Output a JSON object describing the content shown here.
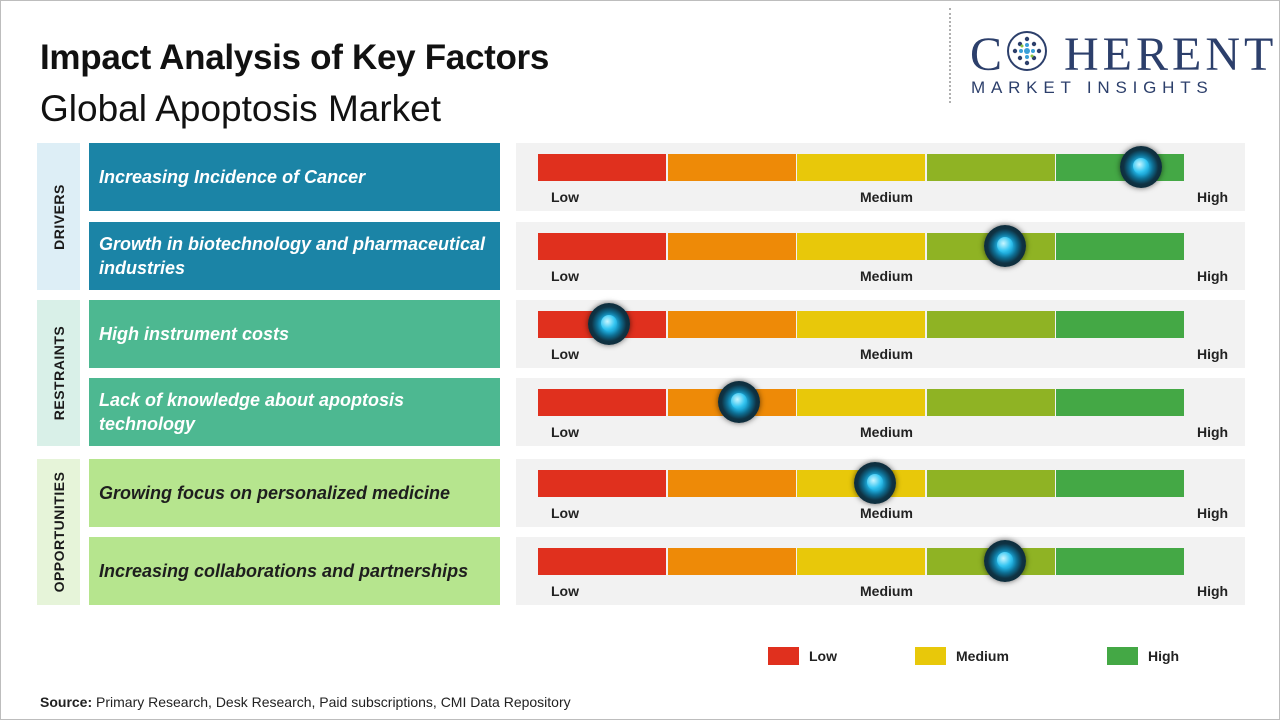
{
  "title": "Impact Analysis of Key Factors",
  "subtitle": "Global Apoptosis Market",
  "logo": {
    "main": "COHERENT",
    "sub": "MARKET INSIGHTS"
  },
  "scale_labels": {
    "low": "Low",
    "medium": "Medium",
    "high": "High"
  },
  "scale_colors": [
    "#e0301e",
    "#ee8a07",
    "#e8c80a",
    "#8fb324",
    "#44a845"
  ],
  "groups": [
    {
      "label": "DRIVERS",
      "bg": "#ddeef6",
      "factor_bg": "#1b84a6",
      "factor_color": "#ffffff"
    },
    {
      "label": "RESTRAINTS",
      "bg": "#d9f0e8",
      "factor_bg": "#4db891",
      "factor_color": "#ffffff"
    },
    {
      "label": "OPPORTUNITIES",
      "bg": "#e6f4d9",
      "factor_bg": "#b6e58e",
      "factor_color": "#1e1e1e"
    }
  ],
  "legend": [
    {
      "label": "Low",
      "color": "#e0301e"
    },
    {
      "label": "Medium",
      "color": "#e8c80a"
    },
    {
      "label": "High",
      "color": "#44a845"
    }
  ],
  "source": {
    "prefix": "Source:",
    "text": " Primary Research, Desk Research, Paid subscriptions, CMI Data Repository"
  },
  "chart_data": {
    "type": "table",
    "scale": [
      "Low",
      "Medium",
      "High"
    ],
    "factors": [
      {
        "group": "DRIVERS",
        "label": "Increasing Incidence of Cancer",
        "impact": 0.93
      },
      {
        "group": "DRIVERS",
        "label": "Growth in biotechnology and pharmaceutical industries",
        "impact": 0.72
      },
      {
        "group": "RESTRAINTS",
        "label": "High instrument costs",
        "impact": 0.11
      },
      {
        "group": "RESTRAINTS",
        "label": "Lack of knowledge about apoptosis technology",
        "impact": 0.31
      },
      {
        "group": "OPPORTUNITIES",
        "label": "Growing focus on personalized medicine",
        "impact": 0.52
      },
      {
        "group": "OPPORTUNITIES",
        "label": "Increasing collaborations and partnerships",
        "impact": 0.72
      }
    ]
  }
}
